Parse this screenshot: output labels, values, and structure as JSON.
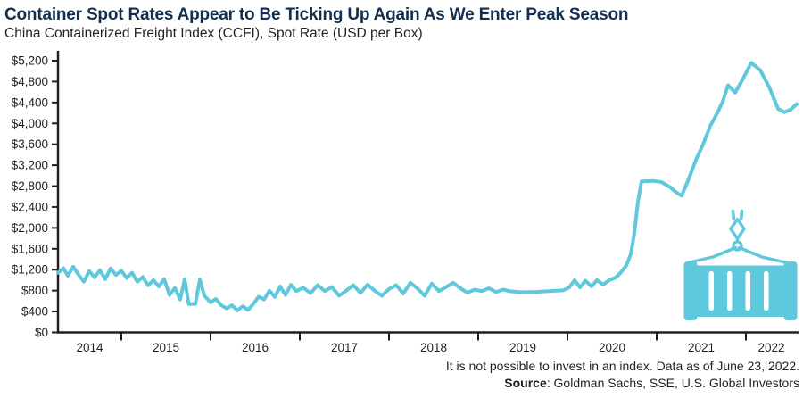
{
  "footer": {
    "line1": "It is not possible to invest in an index. Data as of June 23, 2022.",
    "source_label": "Source",
    "source_rest": ": Goldman Sachs, SSE, U.S. Global Investors"
  },
  "colors": {
    "line": "#5FC8DC",
    "title": "#132F4E",
    "axis": "#231F20"
  },
  "icons": [
    {
      "name": "container-crane-icon",
      "meaning": "shipping container lifted by crane hook"
    }
  ],
  "chart_data": {
    "type": "line",
    "title": "Container Spot Rates Appear to Be Ticking Up Again As We Enter Peak Season",
    "subtitle": "China Containerized Freight Index (CCFI), Spot Rate (USD per Box)",
    "xlabel": "",
    "ylabel": "Spot Rate (USD per Box)",
    "ylim": [
      0,
      5200
    ],
    "x_domain": [
      2014.29,
      2022.57
    ],
    "grid": false,
    "legend": "none",
    "y_ticks": [
      {
        "value": 0,
        "label": "$0"
      },
      {
        "value": 400,
        "label": "$400"
      },
      {
        "value": 800,
        "label": "$800"
      },
      {
        "value": 1200,
        "label": "$1,200"
      },
      {
        "value": 1600,
        "label": "$1,600"
      },
      {
        "value": 2000,
        "label": "$2,000"
      },
      {
        "value": 2400,
        "label": "$2,400"
      },
      {
        "value": 2800,
        "label": "$2,800"
      },
      {
        "value": 3200,
        "label": "$3,200"
      },
      {
        "value": 3600,
        "label": "$3,600"
      },
      {
        "value": 4000,
        "label": "$4,000"
      },
      {
        "value": 4400,
        "label": "$4,400"
      },
      {
        "value": 4800,
        "label": "$4,800"
      },
      {
        "value": 5200,
        "label": "$5,200"
      }
    ],
    "x_tick_years": [
      2015,
      2016,
      2017,
      2018,
      2019,
      2020,
      2021,
      2022
    ],
    "x_year_labels": [
      "2014",
      "2015",
      "2016",
      "2017",
      "2018",
      "2019",
      "2020",
      "2021",
      "2022"
    ],
    "series": [
      {
        "name": "CCFI Spot Rate (USD per Box)",
        "points": [
          [
            2014.29,
            1140
          ],
          [
            2014.35,
            1230
          ],
          [
            2014.4,
            1085
          ],
          [
            2014.46,
            1258
          ],
          [
            2014.52,
            1105
          ],
          [
            2014.58,
            970
          ],
          [
            2014.64,
            1175
          ],
          [
            2014.7,
            1054
          ],
          [
            2014.76,
            1190
          ],
          [
            2014.82,
            1020
          ],
          [
            2014.88,
            1224
          ],
          [
            2014.94,
            1100
          ],
          [
            2015.0,
            1180
          ],
          [
            2015.06,
            1040
          ],
          [
            2015.12,
            1140
          ],
          [
            2015.18,
            970
          ],
          [
            2015.24,
            1060
          ],
          [
            2015.3,
            900
          ],
          [
            2015.36,
            1000
          ],
          [
            2015.42,
            880
          ],
          [
            2015.48,
            1020
          ],
          [
            2015.54,
            715
          ],
          [
            2015.6,
            850
          ],
          [
            2015.66,
            630
          ],
          [
            2015.71,
            1020
          ],
          [
            2015.755,
            545
          ],
          [
            2015.83,
            545
          ],
          [
            2015.88,
            1015
          ],
          [
            2015.93,
            700
          ],
          [
            2016.0,
            575
          ],
          [
            2016.06,
            640
          ],
          [
            2016.12,
            520
          ],
          [
            2016.18,
            460
          ],
          [
            2016.24,
            520
          ],
          [
            2016.3,
            420
          ],
          [
            2016.36,
            500
          ],
          [
            2016.42,
            430
          ],
          [
            2016.48,
            545
          ],
          [
            2016.54,
            685
          ],
          [
            2016.6,
            630
          ],
          [
            2016.66,
            800
          ],
          [
            2016.72,
            680
          ],
          [
            2016.78,
            880
          ],
          [
            2016.84,
            715
          ],
          [
            2016.9,
            910
          ],
          [
            2016.96,
            790
          ],
          [
            2017.04,
            855
          ],
          [
            2017.12,
            750
          ],
          [
            2017.2,
            905
          ],
          [
            2017.28,
            790
          ],
          [
            2017.36,
            870
          ],
          [
            2017.44,
            700
          ],
          [
            2017.52,
            800
          ],
          [
            2017.6,
            905
          ],
          [
            2017.68,
            755
          ],
          [
            2017.76,
            915
          ],
          [
            2017.84,
            795
          ],
          [
            2017.92,
            700
          ],
          [
            2018.0,
            830
          ],
          [
            2018.08,
            905
          ],
          [
            2018.16,
            745
          ],
          [
            2018.24,
            950
          ],
          [
            2018.32,
            840
          ],
          [
            2018.4,
            700
          ],
          [
            2018.48,
            935
          ],
          [
            2018.56,
            790
          ],
          [
            2018.64,
            870
          ],
          [
            2018.72,
            950
          ],
          [
            2018.8,
            845
          ],
          [
            2018.88,
            760
          ],
          [
            2018.96,
            820
          ],
          [
            2019.04,
            790
          ],
          [
            2019.12,
            845
          ],
          [
            2019.2,
            770
          ],
          [
            2019.28,
            820
          ],
          [
            2019.36,
            785
          ],
          [
            2019.45,
            775
          ],
          [
            2019.55,
            770
          ],
          [
            2019.65,
            775
          ],
          [
            2019.75,
            785
          ],
          [
            2019.85,
            795
          ],
          [
            2019.95,
            805
          ],
          [
            2020.02,
            860
          ],
          [
            2020.08,
            1000
          ],
          [
            2020.14,
            860
          ],
          [
            2020.2,
            990
          ],
          [
            2020.27,
            880
          ],
          [
            2020.33,
            1000
          ],
          [
            2020.4,
            915
          ],
          [
            2020.47,
            1000
          ],
          [
            2020.54,
            1050
          ],
          [
            2020.6,
            1150
          ],
          [
            2020.66,
            1280
          ],
          [
            2020.71,
            1500
          ],
          [
            2020.75,
            1900
          ],
          [
            2020.79,
            2500
          ],
          [
            2020.83,
            2890
          ],
          [
            2020.95,
            2900
          ],
          [
            2021.05,
            2880
          ],
          [
            2021.15,
            2780
          ],
          [
            2021.22,
            2680
          ],
          [
            2021.28,
            2615
          ],
          [
            2021.35,
            2900
          ],
          [
            2021.44,
            3300
          ],
          [
            2021.52,
            3600
          ],
          [
            2021.6,
            3950
          ],
          [
            2021.68,
            4200
          ],
          [
            2021.74,
            4420
          ],
          [
            2021.8,
            4730
          ],
          [
            2021.88,
            4590
          ],
          [
            2021.96,
            4830
          ],
          [
            2022.06,
            5160
          ],
          [
            2022.16,
            5020
          ],
          [
            2022.26,
            4700
          ],
          [
            2022.36,
            4280
          ],
          [
            2022.43,
            4215
          ],
          [
            2022.5,
            4260
          ],
          [
            2022.57,
            4370
          ]
        ]
      }
    ]
  }
}
